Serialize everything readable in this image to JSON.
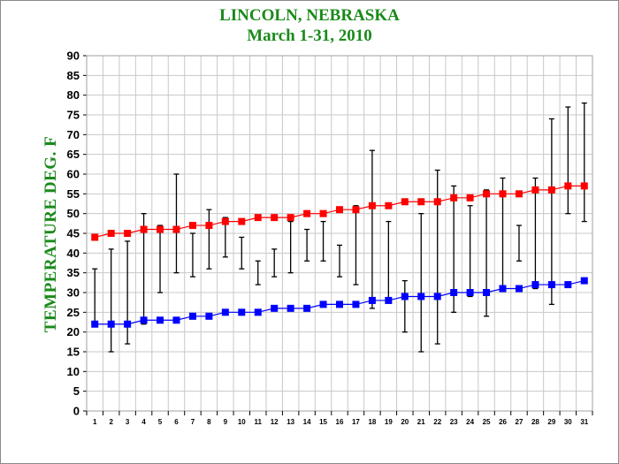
{
  "chart_data": {
    "type": "line",
    "title": "LINCOLN, NEBRASKA",
    "subtitle": "March 1-31, 2010",
    "xlabel": "",
    "ylabel": "TEMPERATURE DEG. F",
    "ylim": [
      0,
      90
    ],
    "yticks": [
      0,
      5,
      10,
      15,
      20,
      25,
      30,
      35,
      40,
      45,
      50,
      55,
      60,
      65,
      70,
      75,
      80,
      85,
      90
    ],
    "xlim": [
      1,
      31
    ],
    "x": [
      1,
      2,
      3,
      4,
      5,
      6,
      7,
      8,
      9,
      10,
      11,
      12,
      13,
      14,
      15,
      16,
      17,
      18,
      19,
      20,
      21,
      22,
      23,
      24,
      25,
      26,
      27,
      28,
      29,
      30,
      31
    ],
    "grid": true,
    "legend": "none",
    "series": [
      {
        "color": "#ff0000",
        "marker": "square",
        "values": [
          44,
          45,
          45,
          46,
          46,
          46,
          47,
          47,
          48,
          48,
          49,
          49,
          49,
          50,
          50,
          51,
          51,
          52,
          52,
          53,
          53,
          53,
          54,
          54,
          55,
          55,
          55,
          56,
          56,
          57,
          57
        ]
      },
      {
        "color": "#0000ff",
        "marker": "square",
        "values": [
          22,
          22,
          22,
          23,
          23,
          23,
          24,
          24,
          25,
          25,
          25,
          26,
          26,
          26,
          27,
          27,
          27,
          28,
          28,
          29,
          29,
          29,
          30,
          30,
          30,
          31,
          31,
          32,
          32,
          32,
          33
        ]
      }
    ],
    "observed_range": {
      "color": "#000000",
      "low": [
        22,
        15,
        17,
        22,
        30,
        35,
        34,
        36,
        39,
        36,
        32,
        34,
        35,
        38,
        38,
        34,
        32,
        26,
        28,
        20,
        15,
        17,
        25,
        29,
        24,
        31,
        38,
        31,
        27,
        50,
        48
      ],
      "high": [
        36,
        41,
        43,
        50,
        47,
        60,
        45,
        51,
        49,
        44,
        38,
        41,
        48,
        46,
        48,
        42,
        52,
        66,
        48,
        33,
        50,
        61,
        57,
        52,
        56,
        59,
        47,
        59,
        74,
        77,
        78
      ]
    }
  }
}
